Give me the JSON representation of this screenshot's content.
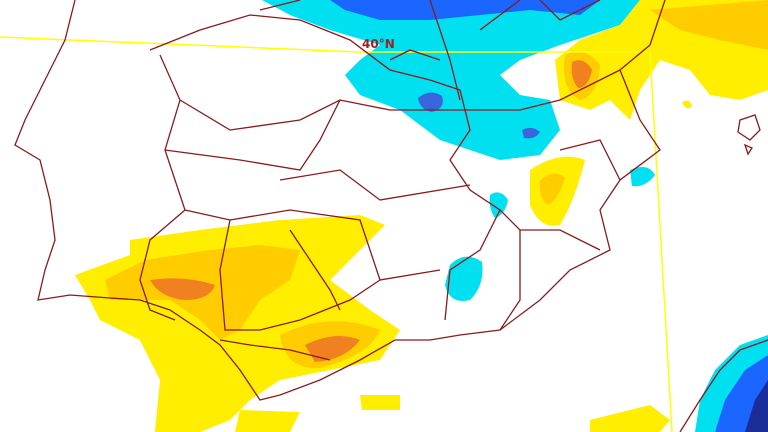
{
  "map": {
    "graticule_label": "40°N",
    "colors": {
      "border": "#8b1a1a",
      "graticule": "#ffff00",
      "light_yellow": "#ffee00",
      "yellow": "#ffcc00",
      "orange": "#ff9900",
      "dark_orange": "#f07020",
      "cyan": "#00e0f0",
      "light_blue": "#3399ff",
      "blue": "#1a66ff",
      "dark_blue": "#1a2d99"
    }
  }
}
